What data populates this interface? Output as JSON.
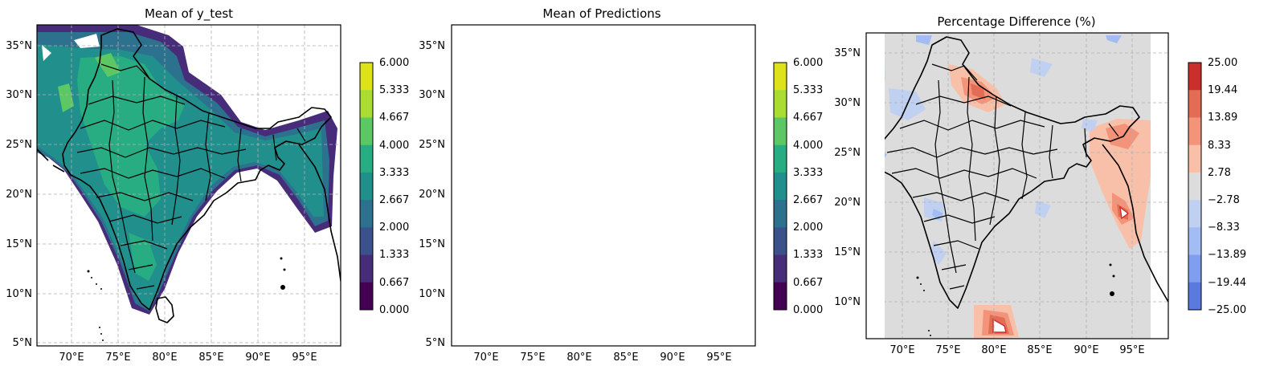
{
  "chart_data": [
    {
      "type": "heatmap",
      "title": "Mean of y_test",
      "xlabel": "",
      "ylabel": "",
      "xlim": [
        66,
        99
      ],
      "ylim": [
        4.8,
        37
      ],
      "x_ticks": [
        "70°E",
        "75°E",
        "80°E",
        "85°E",
        "90°E",
        "95°E"
      ],
      "y_ticks": [
        "5°N",
        "10°N",
        "15°N",
        "20°N",
        "25°N",
        "30°N",
        "35°N"
      ],
      "grid": true,
      "colormap": "viridis",
      "colorbar": {
        "levels": [
          "0.000",
          "0.667",
          "1.333",
          "2.000",
          "2.667",
          "3.333",
          "4.000",
          "4.667",
          "5.333",
          "6.000"
        ],
        "colors": [
          "#440154",
          "#472c7a",
          "#3b518b",
          "#2c718e",
          "#21908d",
          "#27ad81",
          "#5cc863",
          "#aadc32",
          "#dde318"
        ]
      },
      "land_values_note": "mostly 2.667–4.000 over India, up to 4.667 in the northwest"
    },
    {
      "type": "heatmap",
      "title": "Mean of Predictions",
      "xlabel": "",
      "ylabel": "",
      "xlim": [
        66,
        99
      ],
      "ylim": [
        4.8,
        37
      ],
      "x_ticks": [
        "70°E",
        "75°E",
        "80°E",
        "85°E",
        "90°E",
        "95°E"
      ],
      "y_ticks": [
        "5°N",
        "10°N",
        "15°N",
        "20°N",
        "25°N",
        "30°N",
        "35°N"
      ],
      "grid": true,
      "colormap": "viridis",
      "colorbar": {
        "levels": [
          "0.000",
          "0.667",
          "1.333",
          "2.000",
          "2.667",
          "3.333",
          "4.000",
          "4.667",
          "5.333",
          "6.000"
        ],
        "colors": [
          "#440154",
          "#472c7a",
          "#3b518b",
          "#2c718e",
          "#21908d",
          "#27ad81",
          "#5cc863",
          "#aadc32",
          "#dde318"
        ]
      }
    },
    {
      "type": "heatmap",
      "title": "Percentage Difference (%)",
      "xlabel": "",
      "ylabel": "",
      "xlim": [
        66.5,
        99
      ],
      "ylim": [
        6.3,
        37
      ],
      "x_ticks": [
        "70°E",
        "75°E",
        "80°E",
        "85°E",
        "90°E",
        "95°E"
      ],
      "y_ticks": [
        "10°N",
        "15°N",
        "20°N",
        "25°N",
        "30°N",
        "35°N"
      ],
      "grid": true,
      "colormap": "coolwarm",
      "colorbar": {
        "levels": [
          "25.00",
          "19.44",
          "13.89",
          "8.33",
          "2.78",
          "−2.78",
          "−8.33",
          "−13.89",
          "−19.44",
          "−25.00"
        ],
        "colors": [
          "#c9302c",
          "#e36c55",
          "#f2937a",
          "#f8c0a8",
          "#dcdcdc",
          "#c0d0f0",
          "#a3bdf4",
          "#7f9ef0",
          "#5a7ae0"
        ]
      }
    }
  ]
}
